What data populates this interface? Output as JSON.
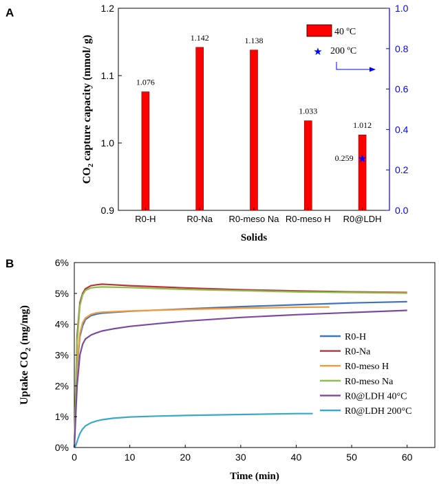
{
  "chart_data": [
    {
      "panel": "A",
      "type": "bar",
      "categories": [
        "R0-H",
        "R0-Na",
        "R0-meso Na",
        "R0-meso H",
        "R0@LDH"
      ],
      "series": [
        {
          "name": "40 ºC",
          "axis": "left",
          "values": [
            1.076,
            1.142,
            1.138,
            1.033,
            1.012
          ],
          "labels": [
            "1.076",
            "1.142",
            "1.138",
            "1.033",
            "1.012"
          ],
          "color": "#ff0000"
        },
        {
          "name": "200 ºC",
          "axis": "right",
          "marker": "star",
          "points": [
            {
              "category": "R0@LDH",
              "value": 0.259,
              "label": "0.259"
            }
          ],
          "color": "#0000ff"
        }
      ],
      "ylabel": "CO2 capture capacity (mmol/ g)",
      "ylabel_parts": {
        "pre": "CO",
        "sub": "2",
        "post": " capture capacity (mmol/ g)"
      },
      "xlabel": "Solids",
      "ylim": [
        0.9,
        1.2
      ],
      "yticks": [
        "0.9",
        "1.0",
        "1.1",
        "1.2"
      ],
      "y2lim": [
        0.0,
        1.0
      ],
      "y2ticks": [
        "0.0",
        "0.2",
        "0.4",
        "0.6",
        "0.8",
        "1.0"
      ],
      "legend_position": "top-right",
      "right_axis_color": "#0000ff"
    },
    {
      "panel": "B",
      "type": "line",
      "xlabel": "Time (min)",
      "ylabel": "Uptake CO2 (mg/mg)",
      "ylabel_parts": {
        "pre": "Uptake CO",
        "sub": "2",
        "post": " (mg/mg)"
      },
      "xlim": [
        0,
        65
      ],
      "ylim": [
        0,
        6
      ],
      "xticks": [
        "0",
        "10",
        "20",
        "30",
        "40",
        "50",
        "60"
      ],
      "yticks": [
        "0%",
        "1%",
        "2%",
        "3%",
        "4%",
        "5%",
        "6%"
      ],
      "legend_position": "center-right",
      "series": [
        {
          "name": "R0-H",
          "color": "#3f74b8",
          "x": [
            0,
            0.5,
            1,
            1.5,
            2,
            3,
            4,
            5,
            10,
            20,
            30,
            40,
            50,
            60
          ],
          "values": [
            0,
            2.6,
            3.6,
            3.95,
            4.15,
            4.28,
            4.33,
            4.36,
            4.42,
            4.5,
            4.57,
            4.63,
            4.69,
            4.73
          ]
        },
        {
          "name": "R0-Na",
          "color": "#b8343a",
          "x": [
            0,
            0.5,
            1,
            1.5,
            2,
            3,
            4,
            5,
            6,
            10,
            20,
            30,
            40,
            50,
            60
          ],
          "values": [
            0,
            3.6,
            4.7,
            5.0,
            5.15,
            5.25,
            5.28,
            5.3,
            5.29,
            5.25,
            5.18,
            5.12,
            5.08,
            5.05,
            5.03
          ]
        },
        {
          "name": "R0-meso H",
          "color": "#f39a3c",
          "x": [
            0,
            0.5,
            1,
            1.5,
            2,
            3,
            4,
            5,
            10,
            20,
            30,
            40,
            46
          ],
          "values": [
            0,
            2.7,
            3.7,
            4.05,
            4.2,
            4.32,
            4.37,
            4.39,
            4.43,
            4.48,
            4.52,
            4.55,
            4.56
          ]
        },
        {
          "name": "R0-meso Na",
          "color": "#8dbe4a",
          "x": [
            0,
            0.5,
            1,
            1.5,
            2,
            3,
            4,
            5,
            10,
            20,
            30,
            40,
            50,
            60
          ],
          "values": [
            0,
            3.4,
            4.6,
            4.95,
            5.1,
            5.18,
            5.2,
            5.21,
            5.19,
            5.13,
            5.09,
            5.05,
            5.03,
            5.01
          ]
        },
        {
          "name": "R0@LDH 40°C",
          "color": "#7b4aa0",
          "x": [
            0,
            0.5,
            1,
            1.5,
            2,
            3,
            4,
            5,
            7,
            10,
            15,
            20,
            30,
            40,
            50,
            60
          ],
          "values": [
            0,
            2.0,
            3.0,
            3.35,
            3.52,
            3.65,
            3.72,
            3.78,
            3.85,
            3.93,
            4.02,
            4.1,
            4.22,
            4.31,
            4.38,
            4.45
          ]
        },
        {
          "name": "R0@LDH 200°C",
          "color": "#3aa8c8",
          "x": [
            0,
            0.3,
            0.6,
            1,
            1.5,
            2,
            3,
            4,
            5,
            7,
            10,
            15,
            20,
            30,
            40,
            43
          ],
          "values": [
            0,
            0.08,
            0.25,
            0.45,
            0.6,
            0.7,
            0.8,
            0.86,
            0.9,
            0.95,
            0.99,
            1.02,
            1.04,
            1.07,
            1.1,
            1.1
          ]
        }
      ]
    }
  ],
  "panels": {
    "a": "A",
    "b": "B"
  }
}
